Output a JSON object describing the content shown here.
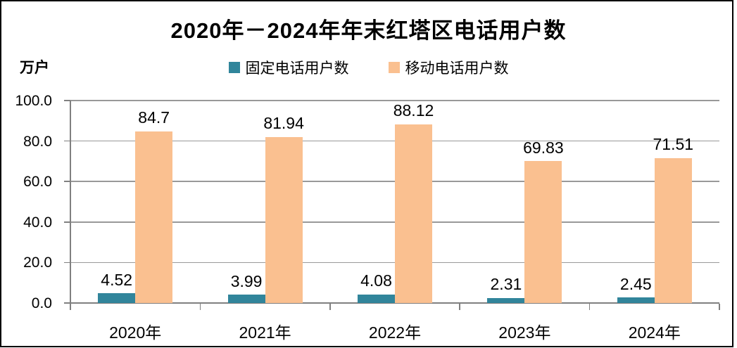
{
  "chart_data": {
    "type": "bar",
    "title": "2020年－2024年年末红塔区电话用户数",
    "ylabel": "万户",
    "xlabel": "",
    "categories": [
      "2020年",
      "2021年",
      "2022年",
      "2023年",
      "2024年"
    ],
    "series": [
      {
        "name": "固定电话用户数",
        "color": "#31859B",
        "values": [
          4.52,
          3.99,
          4.08,
          2.31,
          2.45
        ]
      },
      {
        "name": "移动电话用户数",
        "color": "#FAC090",
        "values": [
          84.7,
          81.94,
          88.12,
          69.83,
          71.51
        ]
      }
    ],
    "ylim": [
      0,
      100
    ],
    "yticks": [
      0,
      20,
      40,
      60,
      80,
      100
    ],
    "ytick_labels": [
      "0.0",
      "20.0",
      "40.0",
      "60.0",
      "80.0",
      "100.0"
    ],
    "grid": true,
    "legend_position": "top-center",
    "value_labels_shown": true
  },
  "colors": {
    "fixed_phone_series": "#31859B",
    "mobile_phone_series": "#FAC090",
    "axis": "#808080",
    "gridline": "#999999",
    "text": "#000000",
    "background": "#FFFFFF",
    "frame_border": "#000000"
  }
}
